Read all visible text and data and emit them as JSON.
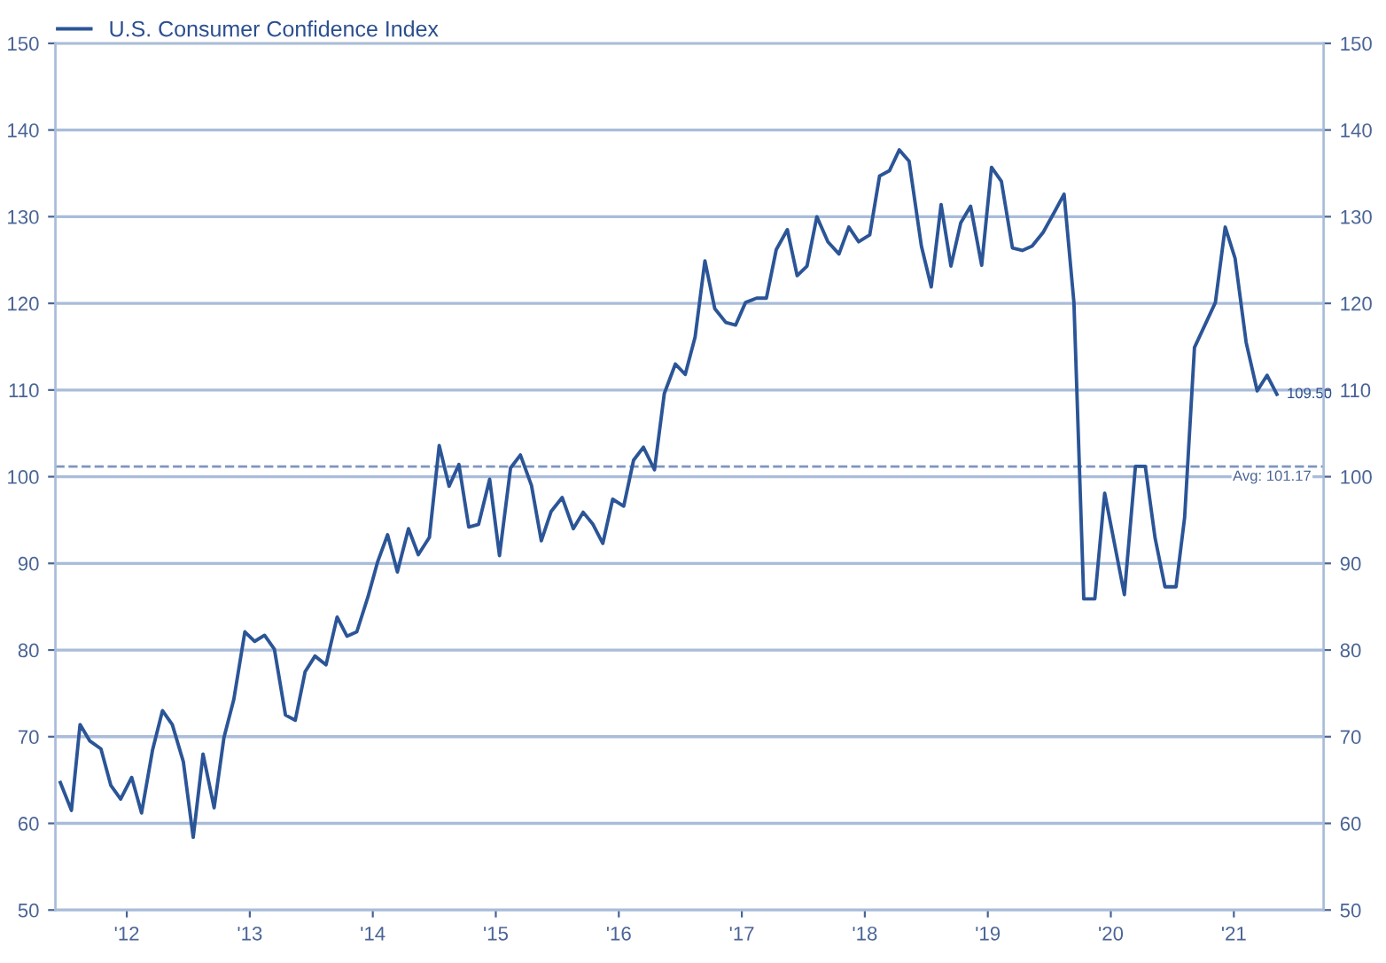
{
  "chart_data": {
    "type": "line",
    "x": [
      2011.46,
      2011.55,
      2011.62,
      2011.7,
      2011.79,
      2011.87,
      2011.95,
      2012.04,
      2012.12,
      2012.21,
      2012.29,
      2012.37,
      2012.46,
      2012.54,
      2012.62,
      2012.71,
      2012.79,
      2012.87,
      2012.96,
      2013.04,
      2013.12,
      2013.2,
      2013.29,
      2013.37,
      2013.45,
      2013.53,
      2013.62,
      2013.71,
      2013.79,
      2013.87,
      2013.96,
      2014.04,
      2014.12,
      2014.2,
      2014.29,
      2014.37,
      2014.46,
      2014.54,
      2014.62,
      2014.7,
      2014.78,
      2014.86,
      2014.95,
      2015.03,
      2015.12,
      2015.2,
      2015.29,
      2015.37,
      2015.45,
      2015.54,
      2015.63,
      2015.71,
      2015.79,
      2015.87,
      2015.95,
      2016.04,
      2016.12,
      2016.2,
      2016.29,
      2016.37,
      2016.46,
      2016.54,
      2016.62,
      2016.7,
      2016.78,
      2016.87,
      2016.95,
      2017.03,
      2017.12,
      2017.2,
      2017.28,
      2017.37,
      2017.45,
      2017.53,
      2017.61,
      2017.7,
      2017.79,
      2017.87,
      2017.95,
      2018.04,
      2018.12,
      2018.2,
      2018.28,
      2018.36,
      2018.46,
      2018.54,
      2018.62,
      2018.7,
      2018.78,
      2018.86,
      2018.95,
      2019.03,
      2019.11,
      2019.2,
      2019.28,
      2019.36,
      2019.45,
      2019.54,
      2019.62,
      2019.7,
      2019.78,
      2019.87,
      2019.95,
      2020.11,
      2020.2,
      2020.28,
      2020.36,
      2020.44,
      2020.53,
      2020.6,
      2020.68,
      2020.85,
      2020.93,
      2021.01,
      2021.1,
      2021.19,
      2021.27,
      2021.35
    ],
    "series": [
      {
        "name": "U.S. Consumer Confidence Index",
        "color": "#2b5597",
        "values": [
          64.7,
          61.5,
          71.4,
          69.5,
          68.6,
          64.4,
          62.8,
          65.3,
          61.2,
          68.5,
          73.0,
          71.4,
          67.1,
          58.4,
          68.0,
          61.8,
          69.9,
          74.3,
          82.1,
          81.0,
          81.7,
          80.1,
          72.5,
          71.9,
          77.5,
          79.3,
          78.3,
          83.8,
          81.6,
          82.1,
          86.1,
          90.2,
          93.3,
          89.0,
          94.0,
          91.0,
          93.0,
          103.6,
          98.9,
          101.4,
          94.2,
          94.5,
          99.7,
          90.9,
          101.0,
          102.5,
          99.0,
          92.6,
          96.0,
          97.6,
          94.0,
          95.9,
          94.5,
          92.3,
          97.4,
          96.6,
          101.9,
          103.4,
          100.8,
          109.6,
          113.0,
          111.8,
          116.1,
          124.9,
          119.4,
          117.8,
          117.5,
          120.1,
          120.6,
          120.6,
          126.2,
          128.5,
          123.2,
          124.3,
          130.0,
          127.1,
          125.7,
          128.8,
          127.1,
          127.9,
          134.7,
          135.3,
          137.7,
          136.4,
          126.6,
          121.9,
          131.4,
          124.3,
          129.3,
          131.2,
          124.4,
          135.7,
          134.1,
          126.4,
          126.1,
          126.6,
          128.2,
          130.5,
          132.6,
          120.1,
          85.9,
          85.9,
          98.1,
          86.4,
          101.2,
          101.2,
          92.9,
          87.3,
          87.3,
          95.3,
          114.9,
          120.1,
          128.8,
          125.2,
          115.5,
          109.9,
          111.7,
          109.5
        ]
      }
    ],
    "xlim": [
      2011.42,
      2021.73
    ],
    "xticks": [
      {
        "value": 2012,
        "label": "'12"
      },
      {
        "value": 2013,
        "label": "'13"
      },
      {
        "value": 2014,
        "label": "'14"
      },
      {
        "value": 2015,
        "label": "'15"
      },
      {
        "value": 2016,
        "label": "'16"
      },
      {
        "value": 2017,
        "label": "'17"
      },
      {
        "value": 2018,
        "label": "'18"
      },
      {
        "value": 2019,
        "label": "'19"
      },
      {
        "value": 2020,
        "label": "'20"
      },
      {
        "value": 2021,
        "label": "'21"
      }
    ],
    "ylim": [
      50,
      150
    ],
    "yticks": [
      50,
      60,
      70,
      80,
      90,
      100,
      110,
      120,
      130,
      140,
      150
    ],
    "y2lim": [
      50,
      150
    ],
    "y2ticks": [
      50,
      60,
      70,
      80,
      90,
      100,
      110,
      120,
      130,
      140,
      150
    ],
    "ref_lines": [
      {
        "axis": "y",
        "value": 101.17,
        "label": "Avg: 101.17",
        "color": "#7f95bf",
        "line_style": "dashed"
      }
    ],
    "annotations": [
      {
        "text": "109.50",
        "x": 2021.35,
        "y": 109.5
      }
    ],
    "grid": "y",
    "legend": "top left",
    "marker": "none",
    "line_style": "solid"
  }
}
